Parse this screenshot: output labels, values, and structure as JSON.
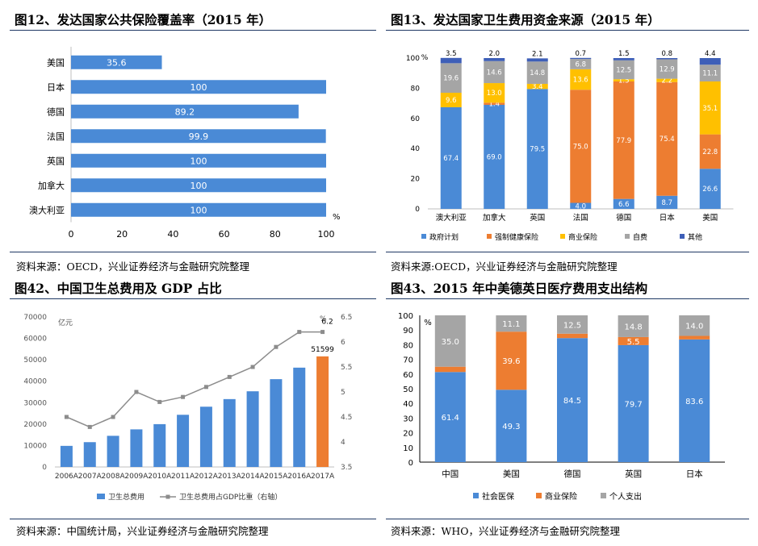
{
  "colors": {
    "blue": "#4a8ad6",
    "orange": "#ed7d31",
    "gray": "#a5a5a5",
    "yellow": "#ffc000",
    "navy": "#3e5fb8",
    "line": "#8c8c8c"
  },
  "panels": {
    "p12": {
      "title": "图12、发达国家公共保险覆盖率（2015 年）",
      "source": "资料来源：OECD，兴业证券经济与金融研究院整理"
    },
    "p13": {
      "title": "图13、发达国家卫生费用资金来源（2015 年）",
      "source": "资料来源:OECD，兴业证券经济与金融研究院整理"
    },
    "p42": {
      "title": "图42、中国卫生总费用及 GDP 占比",
      "source": "资料来源：中国统计局，兴业证券经济与金融研究院整理"
    },
    "p43": {
      "title": "图43、2015 年中美德英日医疗费用支出结构",
      "source": "资料来源：WHO，兴业证券经济与金融研究院整理"
    }
  },
  "chart_data": [
    {
      "id": "p12",
      "type": "bar",
      "orientation": "horizontal",
      "categories": [
        "美国",
        "日本",
        "德国",
        "法国",
        "英国",
        "加拿大",
        "澳大利亚"
      ],
      "values": [
        35.6,
        100,
        89.2,
        99.9,
        100,
        100,
        100
      ],
      "labels": [
        "35.6",
        "100",
        "89.2",
        "99.9",
        "100",
        "100",
        "100"
      ],
      "xlim": [
        0,
        100
      ],
      "xticks": [
        "0",
        "20",
        "40",
        "60",
        "80",
        "100"
      ],
      "unit": "%"
    },
    {
      "id": "p13",
      "type": "bar",
      "stacked": true,
      "categories": [
        "澳大利亚",
        "加拿大",
        "英国",
        "法国",
        "德国",
        "日本",
        "美国"
      ],
      "series": [
        {
          "name": "政府计划",
          "values": [
            67.4,
            69.0,
            79.5,
            4.0,
            6.6,
            8.7,
            26.6
          ],
          "labels": [
            "67.4",
            "69.0",
            "79.5",
            "4.0",
            "6.6",
            "8.7",
            "26.6"
          ],
          "color": "#4a8ad6"
        },
        {
          "name": "强制健康保险",
          "values": [
            0,
            1.4,
            0,
            75.0,
            77.9,
            75.4,
            22.8
          ],
          "labels": [
            "",
            "1.4",
            "",
            "75.0",
            "77.9",
            "75.4",
            "22.8"
          ],
          "color": "#ed7d31"
        },
        {
          "name": "商业保险",
          "values": [
            9.6,
            13.0,
            3.4,
            13.6,
            1.5,
            2.2,
            35.1
          ],
          "labels": [
            "9.6",
            "13.0",
            "3.4",
            "13.6",
            "1.5",
            "2.2",
            "35.1"
          ],
          "color": "#ffc000"
        },
        {
          "name": "自费",
          "values": [
            19.6,
            14.6,
            14.8,
            6.8,
            12.5,
            12.9,
            11.1
          ],
          "labels": [
            "19.6",
            "14.6",
            "14.8",
            "6.8",
            "12.5",
            "12.9",
            "11.1"
          ],
          "color": "#a5a5a5"
        },
        {
          "name": "其他",
          "values": [
            3.5,
            2.0,
            2.1,
            0.7,
            1.5,
            0.8,
            4.4
          ],
          "labels": [
            "3.5",
            "2.0",
            "2.1",
            "0.7",
            "1.5",
            "0.8",
            "4.4"
          ],
          "color": "#3e5fb8"
        }
      ],
      "ylim": [
        0,
        100
      ],
      "yticks": [
        "0",
        "20",
        "40",
        "60",
        "80",
        "100"
      ],
      "unit": "%",
      "legend": "bottom"
    },
    {
      "id": "p42",
      "type": "bar",
      "categories": [
        "2006A",
        "2007A",
        "2008A",
        "2009A",
        "2010A",
        "2011A",
        "2012A",
        "2013A",
        "2014A",
        "2015A",
        "2016A",
        "2017A"
      ],
      "series": [
        {
          "name": "卫生总费用",
          "type": "bar",
          "values": [
            9843,
            11574,
            14535,
            17542,
            19980,
            24346,
            28119,
            31669,
            35312,
            40975,
            46345,
            51599
          ],
          "color": "#4a8ad6",
          "highlight": {
            "index": 11,
            "color": "#ed7d31",
            "label": "51599"
          }
        },
        {
          "name": "卫生总费用占GDP比重（右轴）",
          "type": "line",
          "values": [
            4.5,
            4.3,
            4.5,
            5.0,
            4.8,
            4.9,
            5.1,
            5.3,
            5.5,
            5.9,
            6.2,
            6.2
          ],
          "color": "#8c8c8c",
          "end_label": "6.2"
        }
      ],
      "ylim": [
        0,
        70000
      ],
      "yticks": [
        "0",
        "10000",
        "20000",
        "30000",
        "40000",
        "50000",
        "60000",
        "70000"
      ],
      "ylabel": "亿元",
      "y2lim": [
        3.5,
        6.5
      ],
      "y2ticks": [
        "3.5",
        "4",
        "4.5",
        "5",
        "5.5",
        "6",
        "6.5"
      ],
      "y2label": "%",
      "legend": "bottom"
    },
    {
      "id": "p43",
      "type": "bar",
      "stacked": true,
      "categories": [
        "中国",
        "美国",
        "德国",
        "英国",
        "日本"
      ],
      "series": [
        {
          "name": "社会医保",
          "values": [
            61.4,
            49.3,
            84.5,
            79.7,
            83.6
          ],
          "labels": [
            "61.4",
            "49.3",
            "84.5",
            "79.7",
            "83.6"
          ],
          "color": "#4a8ad6"
        },
        {
          "name": "商业保险",
          "values": [
            3.6,
            39.6,
            3.0,
            5.5,
            2.4
          ],
          "labels": [
            "3.6",
            "39.6",
            "3.0",
            "5.5",
            "2.4"
          ],
          "color": "#ed7d31"
        },
        {
          "name": "个人支出",
          "values": [
            35.0,
            11.1,
            12.5,
            14.8,
            14.0
          ],
          "labels": [
            "35.0",
            "11.1",
            "12.5",
            "14.8",
            "14.0"
          ],
          "color": "#a5a5a5"
        }
      ],
      "ylim": [
        0,
        100
      ],
      "yticks": [
        "0",
        "10",
        "20",
        "30",
        "40",
        "50",
        "60",
        "70",
        "80",
        "90",
        "100"
      ],
      "unit": "%",
      "legend": "bottom"
    }
  ]
}
